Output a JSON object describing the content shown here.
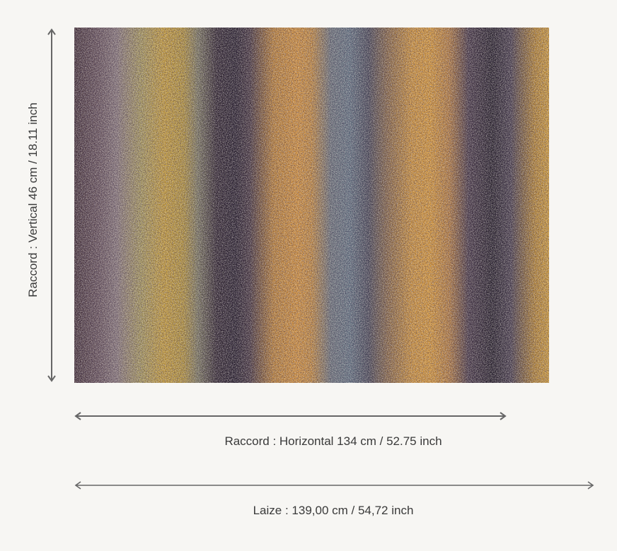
{
  "fabric": {
    "description_icon": "fabric-swatch-image"
  },
  "measurements": {
    "vertical_repeat_label": "Raccord : Vertical 46 cm / 18.11 inch",
    "horizontal_repeat_label": "Raccord : Horizontal 134 cm / 52.75 inch",
    "width_label": "Laize : 139,00 cm / 54,72 inch"
  },
  "colors": {
    "background": "#f7f6f3",
    "line": "#666666",
    "text": "#3a3a3a"
  }
}
